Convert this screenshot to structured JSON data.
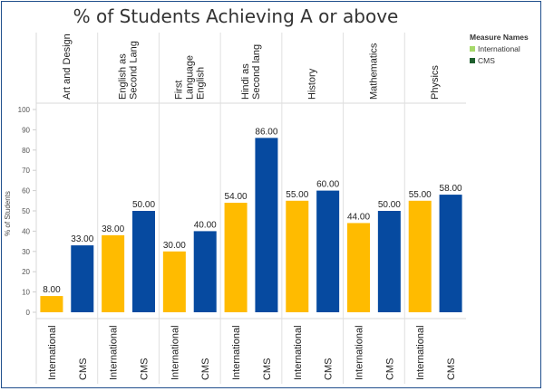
{
  "chart_data": {
    "type": "bar",
    "title": "% of Students Achieving A or above",
    "xlabel": "",
    "ylabel": "% of Students",
    "ylim": [
      0,
      100
    ],
    "yticks": [
      0,
      10,
      20,
      30,
      40,
      50,
      60,
      70,
      80,
      90,
      100
    ],
    "grid": false,
    "legend_placement": "top-right",
    "legend_title": "Measure Names",
    "legend_entries": [
      "International",
      "CMS"
    ],
    "legend_colors": [
      "#a6d96a",
      "#1e5f2e"
    ],
    "bar_colors": {
      "International": "#ffbb00",
      "CMS": "#064aa0"
    },
    "subjects": [
      "Art and Design",
      "English as Second Lang",
      "First Language English",
      "Hindi as Second lang",
      "History",
      "Mathematics",
      "Physics"
    ],
    "subject_label_lines": [
      [
        "Art and Design"
      ],
      [
        "English as",
        "Second Lang"
      ],
      [
        "First",
        "Language",
        "English"
      ],
      [
        "Hindi as",
        "Second lang"
      ],
      [
        "History"
      ],
      [
        "Mathematics"
      ],
      [
        "Physics"
      ]
    ],
    "measures": [
      "International",
      "CMS"
    ],
    "series": [
      {
        "name": "International",
        "values": [
          8,
          38,
          30,
          54,
          55,
          44,
          55
        ]
      },
      {
        "name": "CMS",
        "values": [
          33,
          50,
          40,
          86,
          60,
          50,
          58
        ]
      }
    ],
    "data_labels": {
      "International": [
        "8.00",
        "38.00",
        "30.00",
        "54.00",
        "55.00",
        "44.00",
        "55.00"
      ],
      "CMS": [
        "33.00",
        "50.00",
        "40.00",
        "86.00",
        "60.00",
        "50.00",
        "58.00"
      ]
    }
  }
}
